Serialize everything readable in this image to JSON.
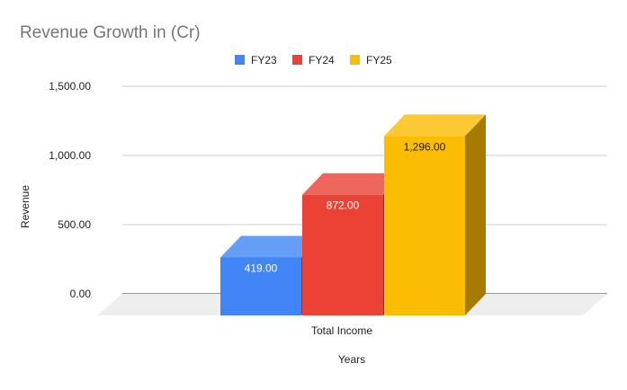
{
  "chart_data": {
    "type": "bar",
    "style": "3d",
    "title": "Revenue Growth in (Cr)",
    "xlabel": "Years",
    "ylabel": "Revenue",
    "categories": [
      "Total Income"
    ],
    "series": [
      {
        "name": "FY23",
        "values": [
          419
        ],
        "label": "419.00",
        "color": "#4285f4",
        "top": "#669df6",
        "side": "#2a56a0",
        "label_color": "#ffffff"
      },
      {
        "name": "FY24",
        "values": [
          872
        ],
        "label": "872.00",
        "color": "#ea4335",
        "top": "#ee675c",
        "side": "#9c2c23",
        "label_color": "#ffffff"
      },
      {
        "name": "FY25",
        "values": [
          1296
        ],
        "label": "1,296.00",
        "color": "#fbbc04",
        "top": "#fcc934",
        "side": "#a67c00",
        "label_color": "#222222"
      }
    ],
    "ylim": [
      0,
      1500
    ],
    "yticks": [
      0,
      500,
      1000,
      1500
    ],
    "ytick_labels": [
      "0.00",
      "500.00",
      "1,000.00",
      "1,500.00"
    ],
    "grid": true,
    "legend": "top"
  }
}
